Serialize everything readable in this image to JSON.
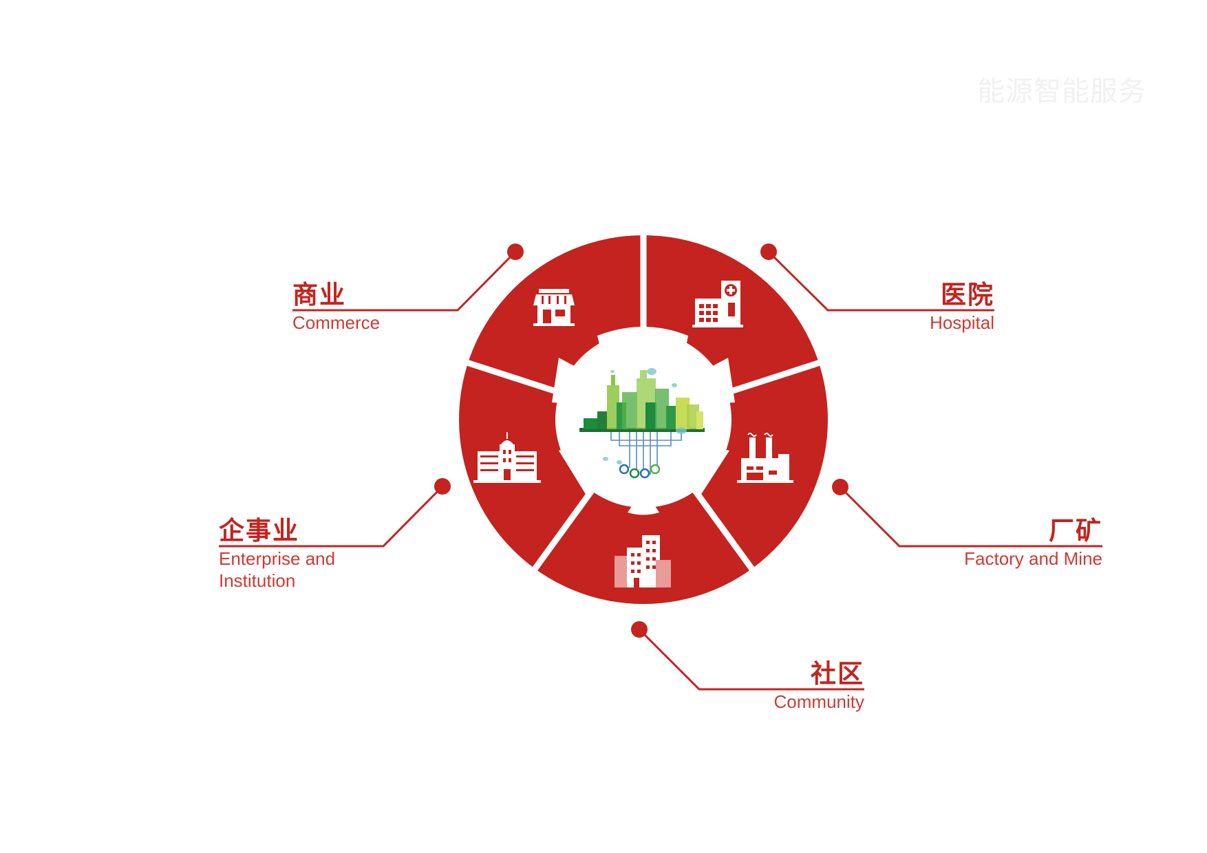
{
  "header": {
    "watermark": "能源智能服务"
  },
  "colors": {
    "primary_red": "#c4231f",
    "background": "#ffffff",
    "city_greens": [
      "#1e8a3c",
      "#56b04a",
      "#8cc63f",
      "#c7dd59"
    ],
    "node_blue": "#2b6fb5"
  },
  "center": {
    "image": "green-city-skyline-icon"
  },
  "segments": [
    {
      "id": "commerce",
      "zh": "商业",
      "en": "Commerce",
      "icon": "storefront-icon"
    },
    {
      "id": "hospital",
      "zh": "医院",
      "en": "Hospital",
      "icon": "hospital-icon"
    },
    {
      "id": "factory",
      "zh": "厂矿",
      "en": "Factory and Mine",
      "icon": "factory-icon"
    },
    {
      "id": "community",
      "zh": "社区",
      "en": "Community",
      "icon": "residential-buildings-icon"
    },
    {
      "id": "enterprise",
      "zh": "企事业",
      "en": "Enterprise and Institution",
      "icon": "institution-building-icon"
    }
  ]
}
